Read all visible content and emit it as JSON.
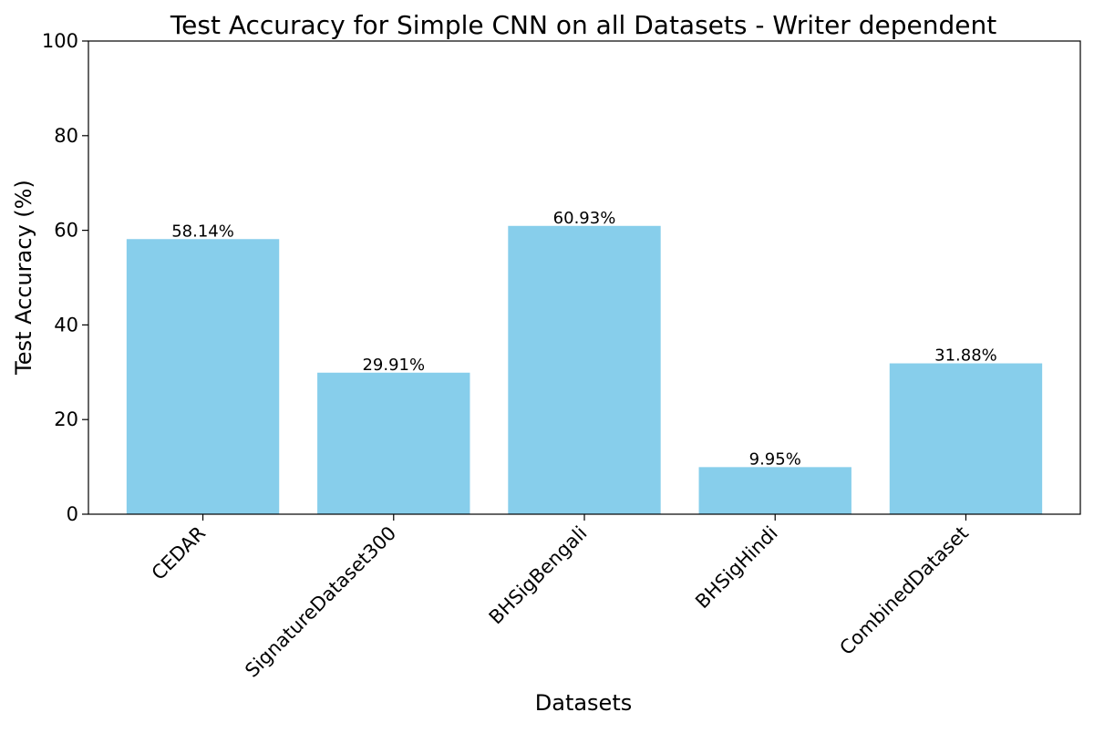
{
  "chart_data": {
    "type": "bar",
    "title": "Test Accuracy for Simple CNN on all Datasets - Writer dependent",
    "xlabel": "Datasets",
    "ylabel": "Test Accuracy (%)",
    "categories": [
      "CEDAR",
      "SignatureDataset300",
      "BHSigBengali",
      "BHSigHindi",
      "CombinedDataset"
    ],
    "values": [
      58.14,
      29.91,
      60.93,
      9.95,
      31.88
    ],
    "value_labels": [
      "58.14%",
      "29.91%",
      "60.93%",
      "9.95%",
      "31.88%"
    ],
    "ylim": [
      0,
      100
    ],
    "yticks": [
      0,
      20,
      40,
      60,
      80,
      100
    ],
    "ytick_labels": [
      "0",
      "20",
      "40",
      "60",
      "80",
      "100"
    ],
    "grid": false,
    "legend": "none",
    "bar_color": "#87CEEB",
    "xtick_rotation": 45
  }
}
